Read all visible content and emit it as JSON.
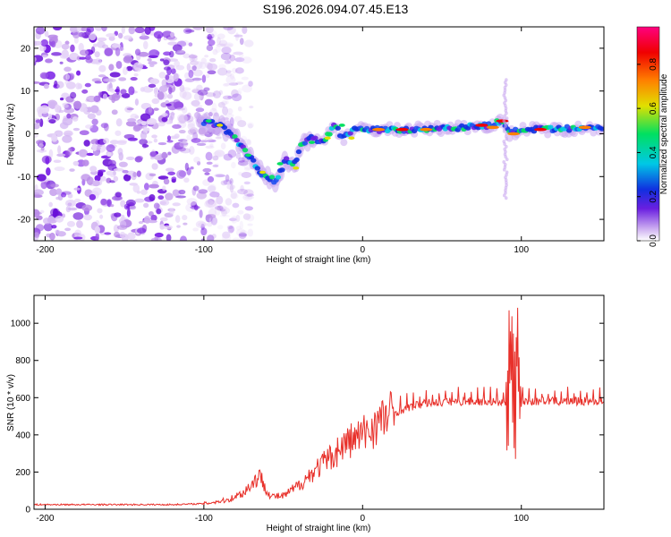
{
  "title": "S196.2026.094.07.45.E13",
  "colors": {
    "background": "#ffffff",
    "axis": "#000000",
    "snr_line": "#e8302a",
    "blob_light": "#dcc2f4",
    "blob_dark": "#7a1fe6"
  },
  "chart_data": [
    {
      "type": "heatmap",
      "title": "",
      "xlabel": "Height of straight line (km)",
      "ylabel": "Frequency (Hz)",
      "xlim": [
        -207,
        152
      ],
      "ylim": [
        -25,
        25
      ],
      "xticks": [
        -200,
        -100,
        0,
        100
      ],
      "yticks": [
        -20,
        -10,
        0,
        10,
        20
      ],
      "colorbar": {
        "label": "Normalized spectral amplitude",
        "range": [
          0.0,
          0.97
        ],
        "ticks": [
          0.0,
          0.2,
          0.4,
          0.6,
          0.8
        ],
        "colormap": [
          "#ffffff",
          "#c9a8f0",
          "#6a1fe0",
          "#1030e0",
          "#00c8e6",
          "#00e060",
          "#e0e000",
          "#ff8000",
          "#f00000",
          "#ff0080"
        ]
      },
      "ridge": {
        "description": "dominant frequency ridge (Hz) vs height (km)",
        "x": [
          -103,
          -90,
          -80,
          -70,
          -62,
          -55,
          -48,
          -42,
          -38,
          -32,
          -25,
          -18,
          -12,
          -6,
          0,
          10,
          30,
          60,
          80,
          88,
          92,
          100,
          120,
          152
        ],
        "y": [
          3,
          2,
          -1,
          -6,
          -10,
          -11,
          -6,
          -7,
          -2,
          -1,
          -2,
          2,
          -1,
          1,
          1,
          1,
          1,
          1.5,
          2,
          3,
          0,
          1,
          1,
          1.5
        ]
      },
      "noise_region_km": [
        -207,
        -95
      ]
    },
    {
      "type": "line",
      "title": "",
      "xlabel": "Height of straight line (km)",
      "ylabel": "SNR (10 * v/v)",
      "xlim": [
        -207,
        152
      ],
      "ylim": [
        0,
        1150
      ],
      "xticks": [
        -200,
        -100,
        0,
        100
      ],
      "yticks": [
        0,
        200,
        400,
        600,
        800,
        1000
      ],
      "envelope": {
        "x": [
          -207,
          -120,
          -100,
          -85,
          -75,
          -65,
          -58,
          -50,
          -40,
          -30,
          -20,
          -10,
          0,
          10,
          20,
          30,
          40,
          60,
          80,
          90,
          93,
          95,
          97,
          100,
          120,
          152
        ],
        "y": [
          25,
          25,
          30,
          50,
          90,
          180,
          70,
          70,
          130,
          210,
          280,
          360,
          400,
          470,
          520,
          550,
          570,
          580,
          580,
          570,
          800,
          600,
          820,
          580,
          580,
          580
        ]
      }
    }
  ]
}
